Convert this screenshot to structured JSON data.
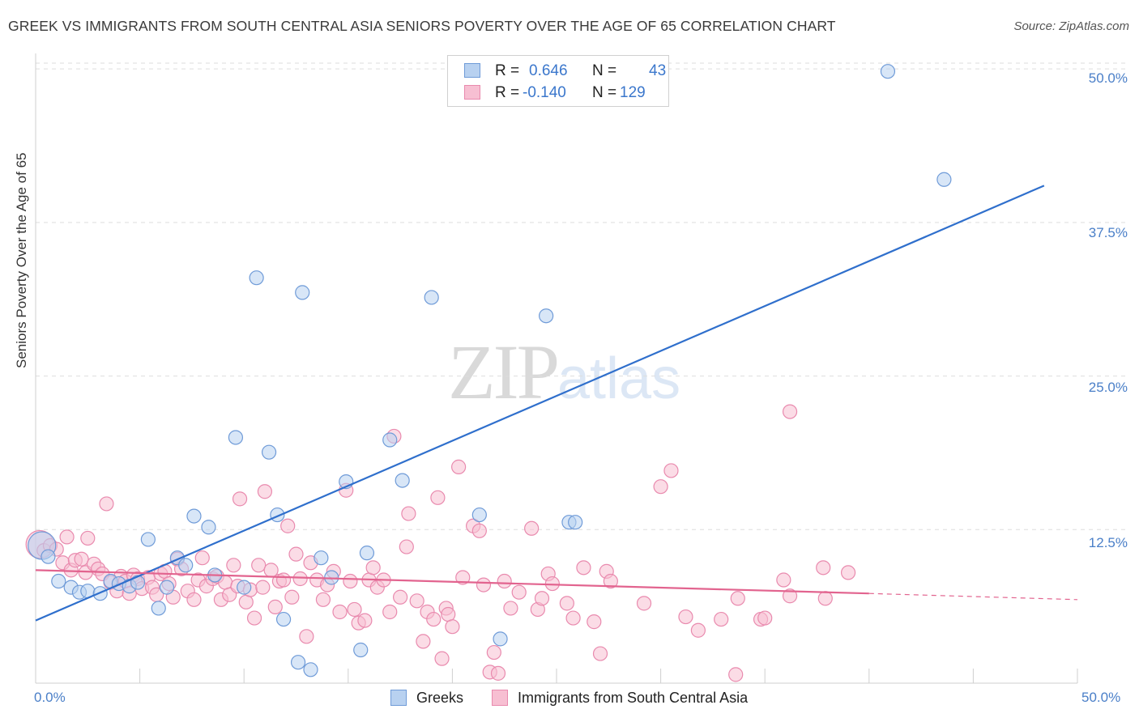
{
  "header": {
    "title": "GREEK VS IMMIGRANTS FROM SOUTH CENTRAL ASIA SENIORS POVERTY OVER THE AGE OF 65 CORRELATION CHART",
    "source": "Source: ZipAtlas.com"
  },
  "watermark": {
    "left": "ZIP",
    "right": "atlas"
  },
  "legend": {
    "greeks": {
      "r_label": "R =",
      "r_value": "0.646",
      "n_label": "N =",
      "n_value": "43"
    },
    "immigrants": {
      "r_label": "R =",
      "r_value": "-0.140",
      "n_label": "N =",
      "n_value": "129"
    }
  },
  "bottom_legend": {
    "greeks": "Greeks",
    "immigrants": "Immigrants from South Central Asia"
  },
  "colors": {
    "greeks_fill": "#b8d1f0",
    "greeks_stroke": "#6f9bd8",
    "greeks_line": "#2f6fcc",
    "imm_fill": "#f7bfd2",
    "imm_stroke": "#e98aae",
    "imm_line": "#e2648f",
    "tick_text": "#4a7fc8",
    "grid": "#dddddd"
  },
  "chart_data": {
    "type": "scatter",
    "title": "GREEK VS IMMIGRANTS FROM SOUTH CENTRAL ASIA SENIORS POVERTY OVER THE AGE OF 65 CORRELATION CHART",
    "xlabel": "",
    "ylabel": "Seniors Poverty Over the Age of 65",
    "xlim": [
      0,
      50
    ],
    "ylim": [
      0,
      51
    ],
    "x_tick_labels": [
      "0.0%",
      "50.0%"
    ],
    "y_ticks": [
      12.5,
      25.0,
      37.5,
      50.0
    ],
    "y_tick_labels": [
      "12.5%",
      "25.0%",
      "37.5%",
      "50.0%"
    ],
    "grid": true,
    "series": [
      {
        "name": "Greeks",
        "R": 0.646,
        "N": 43,
        "trend": {
          "x": [
            0,
            48.4
          ],
          "y": [
            5.1,
            40.5
          ],
          "dashed_to": null
        },
        "points": [
          [
            0.3,
            11.2
          ],
          [
            0.6,
            10.3
          ],
          [
            1.1,
            8.3
          ],
          [
            1.7,
            7.8
          ],
          [
            2.1,
            7.4
          ],
          [
            2.5,
            7.5
          ],
          [
            3.1,
            7.3
          ],
          [
            3.6,
            8.3
          ],
          [
            4.0,
            8.1
          ],
          [
            4.5,
            7.9
          ],
          [
            4.9,
            8.2
          ],
          [
            5.4,
            11.7
          ],
          [
            5.9,
            6.1
          ],
          [
            6.3,
            7.8
          ],
          [
            6.8,
            10.2
          ],
          [
            7.2,
            9.6
          ],
          [
            7.6,
            13.6
          ],
          [
            8.3,
            12.7
          ],
          [
            8.6,
            8.8
          ],
          [
            9.6,
            20.0
          ],
          [
            10.0,
            7.8
          ],
          [
            10.6,
            33.0
          ],
          [
            11.2,
            18.8
          ],
          [
            11.6,
            13.7
          ],
          [
            11.9,
            5.2
          ],
          [
            12.6,
            1.7
          ],
          [
            12.8,
            31.8
          ],
          [
            13.2,
            1.1
          ],
          [
            13.7,
            10.2
          ],
          [
            14.2,
            8.6
          ],
          [
            14.9,
            16.4
          ],
          [
            15.6,
            2.7
          ],
          [
            15.9,
            10.6
          ],
          [
            17.0,
            19.8
          ],
          [
            17.6,
            16.5
          ],
          [
            19.0,
            31.4
          ],
          [
            21.3,
            13.7
          ],
          [
            22.3,
            3.6
          ],
          [
            24.5,
            29.9
          ],
          [
            25.6,
            13.1
          ],
          [
            25.9,
            13.1
          ],
          [
            40.9,
            49.8
          ],
          [
            43.6,
            41.0
          ]
        ]
      },
      {
        "name": "Immigrants from South Central Asia",
        "R": -0.14,
        "N": 129,
        "trend": {
          "x": [
            0,
            40.0
          ],
          "y": [
            9.2,
            7.3
          ],
          "dashed_to": [
            50,
            6.8
          ]
        },
        "points": [
          [
            0.2,
            11.3
          ],
          [
            0.4,
            10.8
          ],
          [
            0.7,
            11.2
          ],
          [
            1.0,
            10.9
          ],
          [
            1.3,
            9.8
          ],
          [
            1.5,
            11.9
          ],
          [
            1.7,
            9.2
          ],
          [
            1.9,
            10.0
          ],
          [
            2.2,
            10.1
          ],
          [
            2.4,
            9.0
          ],
          [
            2.5,
            11.8
          ],
          [
            2.8,
            9.7
          ],
          [
            3.0,
            9.3
          ],
          [
            3.2,
            8.9
          ],
          [
            3.4,
            14.6
          ],
          [
            3.6,
            8.2
          ],
          [
            3.9,
            7.5
          ],
          [
            4.1,
            8.7
          ],
          [
            4.3,
            8.3
          ],
          [
            4.5,
            7.3
          ],
          [
            4.7,
            8.8
          ],
          [
            4.9,
            8.5
          ],
          [
            5.1,
            7.7
          ],
          [
            5.4,
            8.6
          ],
          [
            5.6,
            7.8
          ],
          [
            5.8,
            7.2
          ],
          [
            6.0,
            8.9
          ],
          [
            6.2,
            9.1
          ],
          [
            6.4,
            8.1
          ],
          [
            6.6,
            7.0
          ],
          [
            6.8,
            10.1
          ],
          [
            7.0,
            9.3
          ],
          [
            7.3,
            7.5
          ],
          [
            7.6,
            6.8
          ],
          [
            7.8,
            8.4
          ],
          [
            8.0,
            10.2
          ],
          [
            8.2,
            7.9
          ],
          [
            8.5,
            8.5
          ],
          [
            8.7,
            8.7
          ],
          [
            8.9,
            6.8
          ],
          [
            9.1,
            8.2
          ],
          [
            9.3,
            7.2
          ],
          [
            9.5,
            9.6
          ],
          [
            9.7,
            7.9
          ],
          [
            9.8,
            15.0
          ],
          [
            10.1,
            6.6
          ],
          [
            10.3,
            7.6
          ],
          [
            10.5,
            5.3
          ],
          [
            10.7,
            9.6
          ],
          [
            10.9,
            7.8
          ],
          [
            11.0,
            15.6
          ],
          [
            11.3,
            9.2
          ],
          [
            11.5,
            6.2
          ],
          [
            11.7,
            8.3
          ],
          [
            11.9,
            8.4
          ],
          [
            12.1,
            12.8
          ],
          [
            12.3,
            7.0
          ],
          [
            12.5,
            10.5
          ],
          [
            12.7,
            8.5
          ],
          [
            13.0,
            3.8
          ],
          [
            13.2,
            9.8
          ],
          [
            13.5,
            8.4
          ],
          [
            13.8,
            6.8
          ],
          [
            14.0,
            8.0
          ],
          [
            14.3,
            9.1
          ],
          [
            14.6,
            5.8
          ],
          [
            14.9,
            15.7
          ],
          [
            15.1,
            8.3
          ],
          [
            15.3,
            6.0
          ],
          [
            15.5,
            4.9
          ],
          [
            15.8,
            5.1
          ],
          [
            16.0,
            8.4
          ],
          [
            16.2,
            9.4
          ],
          [
            16.4,
            7.8
          ],
          [
            16.7,
            8.4
          ],
          [
            17.0,
            5.8
          ],
          [
            17.2,
            20.1
          ],
          [
            17.5,
            7.0
          ],
          [
            17.8,
            11.1
          ],
          [
            17.9,
            13.8
          ],
          [
            18.3,
            6.7
          ],
          [
            18.6,
            3.4
          ],
          [
            18.8,
            5.8
          ],
          [
            19.1,
            5.2
          ],
          [
            19.3,
            15.1
          ],
          [
            19.5,
            2.0
          ],
          [
            19.7,
            6.1
          ],
          [
            19.8,
            5.6
          ],
          [
            20.0,
            4.6
          ],
          [
            20.3,
            17.6
          ],
          [
            20.5,
            8.6
          ],
          [
            21.0,
            12.8
          ],
          [
            21.3,
            12.4
          ],
          [
            21.5,
            8.0
          ],
          [
            21.8,
            0.9
          ],
          [
            22.0,
            2.5
          ],
          [
            22.2,
            0.8
          ],
          [
            22.5,
            8.3
          ],
          [
            22.8,
            6.1
          ],
          [
            23.2,
            7.4
          ],
          [
            23.8,
            12.6
          ],
          [
            24.1,
            6.0
          ],
          [
            24.3,
            6.9
          ],
          [
            24.6,
            8.9
          ],
          [
            24.8,
            8.1
          ],
          [
            25.5,
            6.5
          ],
          [
            25.8,
            5.3
          ],
          [
            26.3,
            9.4
          ],
          [
            26.8,
            5.0
          ],
          [
            27.1,
            2.4
          ],
          [
            27.4,
            9.1
          ],
          [
            27.6,
            8.3
          ],
          [
            29.2,
            6.5
          ],
          [
            30.0,
            16.0
          ],
          [
            30.5,
            17.3
          ],
          [
            31.2,
            5.4
          ],
          [
            31.8,
            4.3
          ],
          [
            32.9,
            5.2
          ],
          [
            33.7,
            6.9
          ],
          [
            33.6,
            0.7
          ],
          [
            34.8,
            5.2
          ],
          [
            35.0,
            5.3
          ],
          [
            36.2,
            22.1
          ],
          [
            35.9,
            8.4
          ],
          [
            36.2,
            7.1
          ],
          [
            37.8,
            9.4
          ],
          [
            37.9,
            6.9
          ],
          [
            39.0,
            9.0
          ]
        ]
      }
    ]
  }
}
